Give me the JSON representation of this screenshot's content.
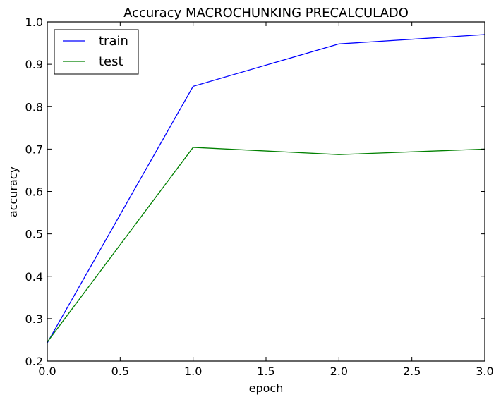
{
  "chart_data": {
    "type": "line",
    "title": "Accuracy MACROCHUNKING PRECALCULADO",
    "xlabel": "epoch",
    "ylabel": "accuracy",
    "xlim": [
      0.0,
      3.0
    ],
    "ylim": [
      0.2,
      1.0
    ],
    "xticks": [
      "0.0",
      "0.5",
      "1.0",
      "1.5",
      "2.0",
      "2.5",
      "3.0"
    ],
    "yticks": [
      "0.2",
      "0.3",
      "0.4",
      "0.5",
      "0.6",
      "0.7",
      "0.8",
      "0.9",
      "1.0"
    ],
    "x": [
      0,
      1,
      2,
      3
    ],
    "series": [
      {
        "name": "train",
        "values": [
          0.243,
          0.848,
          0.948,
          0.97
        ],
        "color": "#0000ff"
      },
      {
        "name": "test",
        "values": [
          0.245,
          0.704,
          0.687,
          0.7
        ],
        "color": "#008000"
      }
    ],
    "grid": false,
    "legend": "top-left"
  }
}
